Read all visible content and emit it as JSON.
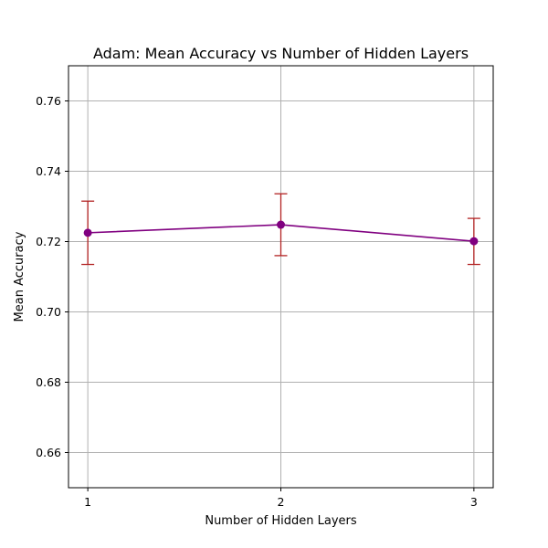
{
  "chart_data": {
    "type": "line",
    "title": "Adam: Mean Accuracy vs Number of Hidden Layers",
    "xlabel": "Number of Hidden Layers",
    "ylabel": "Mean Accuracy",
    "x": [
      1,
      2,
      3
    ],
    "xtick_labels": [
      "1",
      "2",
      "3"
    ],
    "xlim": [
      0.9,
      3.1
    ],
    "ylim": [
      0.65,
      0.77
    ],
    "yticks": [
      0.66,
      0.68,
      0.7,
      0.72,
      0.74,
      0.76
    ],
    "ytick_labels": [
      "0.66",
      "0.68",
      "0.70",
      "0.72",
      "0.74",
      "0.76"
    ],
    "grid": true,
    "series": [
      {
        "values": [
          0.7225,
          0.7248,
          0.7201
        ],
        "error_lower": [
          0.7135,
          0.716,
          0.7135
        ],
        "error_upper": [
          0.7315,
          0.7336,
          0.7266
        ],
        "color": "#800080",
        "error_color": "#b22222",
        "marker": "circle"
      }
    ]
  }
}
